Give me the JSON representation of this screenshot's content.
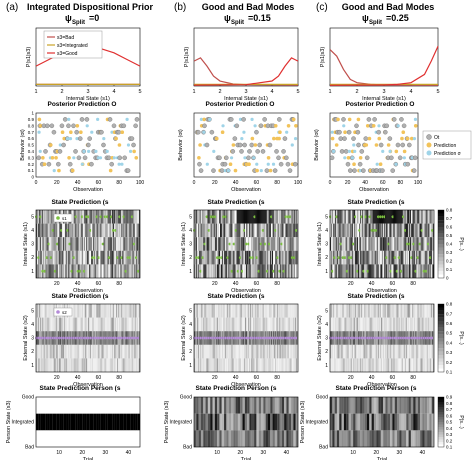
{
  "columns": [
    {
      "letter": "(a)",
      "title": "Integrated Dispositional Prior",
      "psi_symbol": "ψ",
      "psi_sub": "Split",
      "psi_value": "=0"
    },
    {
      "letter": "(b)",
      "title": "Good and Bad Modes",
      "psi_symbol": "ψ",
      "psi_sub": "Split",
      "psi_value": "=0.15"
    },
    {
      "letter": "(c)",
      "title": "Good and Bad Modes",
      "psi_symbol": "ψ",
      "psi_sub": "Split",
      "psi_value": "=0.25"
    }
  ],
  "row_titles": {
    "row2": "Posterior Prediction O",
    "row2_sub": "t",
    "row3": "State Prediction (s",
    "row3_sub": "1",
    "row4": "State Prediction (s",
    "row4_sub": "2",
    "row5": "State Prediction Person (s",
    "row5_sub": "3"
  },
  "axes": {
    "row1_ylabel": "P(s",
    "row1_ysub": "1",
    "row1_xlabel": "Internal State (s",
    "row1_xsub": "1",
    "row2_ylabel": "Behavior (o",
    "row2_ysub": "t",
    "row2_xlabel": "Observation",
    "row3_ylabel": "Internal State (s",
    "row3_ysub": "1",
    "row3_xlabel": "Observation",
    "row4_ylabel": "External State (s",
    "row4_ysub": "2",
    "row4_xlabel": "Observation",
    "row5_ylabel": "Person State (s",
    "row5_ysub": "3",
    "row5_xlabel": "Trial",
    "row3_colorbar_label": "P(s",
    "row4_colorbar_label": "P(s",
    "row5_colorbar_label": "P(s"
  },
  "legends": {
    "row1": [
      "s3=Bad",
      "s3=Integrated",
      "s3=Good"
    ],
    "row3": "s1",
    "row4": "s2",
    "row2_side": [
      "Ot",
      "Prediction",
      "Prediction σ"
    ]
  },
  "colors": {
    "bad": "#c0504d",
    "integrated": "#c9a227",
    "good": "#e03030",
    "observed": "#b0b0b0",
    "prediction": "#f2c35a",
    "prediction_sd": "#9fd4e8",
    "marker_green": "#7cc040",
    "marker_purple": "#b48bd8"
  },
  "chart_data": [
    {
      "type": "line",
      "panel": "row1",
      "xlabel": "Internal State (s1)",
      "ylabel": "P(s1|s3)",
      "xlim": [
        1,
        5
      ],
      "ylim": [
        0,
        0.35
      ],
      "xticks": [
        1,
        2,
        3,
        4,
        5
      ],
      "series_by_column": [
        [
          {
            "name": "s3=Bad",
            "x": [
              1,
              5
            ],
            "y": [
              0.01,
              0.01
            ]
          },
          {
            "name": "s3=Integrated",
            "x": [
              1,
              5
            ],
            "y": [
              0.01,
              0.01
            ]
          },
          {
            "name": "s3=Good",
            "x": [
              1,
              1.5,
              2,
              2.5,
              3,
              3.5,
              4,
              4.5,
              5
            ],
            "y": [
              0.12,
              0.16,
              0.2,
              0.225,
              0.235,
              0.225,
              0.2,
              0.16,
              0.12
            ]
          }
        ],
        [
          {
            "name": "s3=Bad",
            "x": [
              1,
              1.25,
              1.5,
              1.75,
              2,
              2.5,
              3,
              5
            ],
            "y": [
              0.15,
              0.17,
              0.12,
              0.06,
              0.03,
              0.012,
              0.008,
              0.005
            ]
          },
          {
            "name": "s3=Integrated",
            "x": [
              1,
              5
            ],
            "y": [
              0.01,
              0.01
            ]
          },
          {
            "name": "s3=Good",
            "x": [
              1,
              3,
              4,
              4.25,
              4.5,
              4.75,
              5
            ],
            "y": [
              0.005,
              0.008,
              0.03,
              0.06,
              0.12,
              0.17,
              0.15
            ]
          }
        ],
        [
          {
            "name": "s3=Bad",
            "x": [
              1,
              1.25,
              1.5,
              1.75,
              2,
              2.5,
              3,
              5
            ],
            "y": [
              0.22,
              0.18,
              0.1,
              0.04,
              0.02,
              0.01,
              0.006,
              0.004
            ]
          },
          {
            "name": "s3=Integrated",
            "x": [
              1,
              5
            ],
            "y": [
              0.01,
              0.01
            ]
          },
          {
            "name": "s3=Good",
            "x": [
              1,
              3,
              3.5,
              4,
              4.5,
              4.75,
              5
            ],
            "y": [
              0.004,
              0.006,
              0.01,
              0.02,
              0.07,
              0.15,
              0.24
            ]
          }
        ]
      ]
    },
    {
      "type": "scatter",
      "panel": "row2",
      "xlabel": "Observation",
      "ylabel": "Behavior (ot)",
      "xlim": [
        0,
        100
      ],
      "ylim": [
        0,
        1
      ],
      "xticks": [
        0,
        20,
        40,
        60,
        80,
        100
      ],
      "yticks": [
        0,
        0.1,
        0.2,
        0.3,
        0.4,
        0.5,
        0.6,
        0.7,
        0.8,
        0.9,
        1
      ],
      "series": [
        "Ot",
        "Prediction",
        "Prediction σ"
      ],
      "approximate_points_per_observation": 100
    },
    {
      "type": "heatmap",
      "panel": "row3",
      "xlabel": "Observation",
      "ylabel": "Internal State (s1)",
      "xticks": [
        20,
        40,
        60,
        80
      ],
      "yticks": [
        1,
        2,
        3,
        4,
        5
      ],
      "colorbar_ticks": [
        0,
        0.1,
        0.2,
        0.3,
        0.4,
        0.5,
        0.6,
        0.7,
        0.8
      ]
    },
    {
      "type": "heatmap",
      "panel": "row4",
      "xlabel": "Observation",
      "ylabel": "External State (s2)",
      "xticks": [
        20,
        40,
        60,
        80
      ],
      "yticks": [
        1,
        2,
        3,
        4,
        5
      ],
      "colorbar_ticks": [
        0.1,
        0.2,
        0.3,
        0.4,
        0.5,
        0.6,
        0.7,
        0.8
      ]
    },
    {
      "type": "heatmap",
      "panel": "row5",
      "xlabel": "Trial",
      "ylabel": "Person State (s3)",
      "xticks": [
        10,
        20,
        30,
        40
      ],
      "yticks": [
        "Bad",
        "Integrated",
        "Good"
      ],
      "colorbar_ticks": [
        0.1,
        0.2,
        0.3,
        0.4,
        0.5,
        0.6,
        0.7,
        0.8,
        0.9
      ]
    }
  ]
}
